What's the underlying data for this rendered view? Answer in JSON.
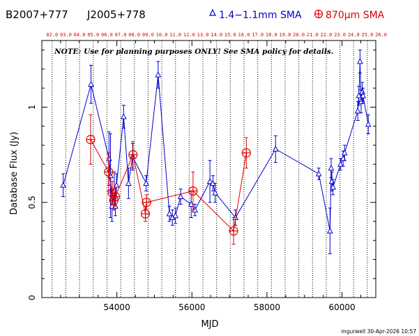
{
  "header": {
    "source_name": "B2007+777",
    "alias_name": "J2005+778",
    "legend_blue_label": "1.4−1.1mm SMA",
    "legend_red_label": "870µm SMA",
    "blue_color": "#0000cc",
    "red_color": "#dd0000"
  },
  "note": "NOTE: Use for planning purposes ONLY! See SMA policy for details.",
  "footer": {
    "credit": "mgurwell 30-Apr-2026 10:57"
  },
  "chart_data": {
    "type": "scatter",
    "xlabel": "MJD",
    "ylabel": "Database Flux (Jy)",
    "xlim": [
      52000,
      60900
    ],
    "ylim": [
      0,
      1.35
    ],
    "xticks": [
      54000,
      56000,
      58000,
      60000
    ],
    "yticks": [
      0,
      0.5,
      1
    ],
    "ytick_labels": [
      "0",
      "0.5",
      "1"
    ],
    "top_axis": {
      "labels": [
        "02.0",
        "03.0",
        "04.0",
        "05.0",
        "06.0",
        "07.0",
        "08.0",
        "09.0",
        "10.0",
        "11.0",
        "12.0",
        "13.0",
        "14.0",
        "15.0",
        "16.0",
        "17.0",
        "18.0",
        "19.0",
        "20.0",
        "21.0",
        "22.0",
        "23.0",
        "24.0",
        "25.0",
        "26.0"
      ],
      "mjd": [
        52275,
        52640,
        53005,
        53371,
        53736,
        54101,
        54466,
        54832,
        55197,
        55562,
        55927,
        56293,
        56658,
        57023,
        57388,
        57754,
        58119,
        58484,
        58849,
        59215,
        59580,
        59945,
        60310,
        60676,
        61041
      ]
    },
    "grid": "vertical dotted lines at year boundaries",
    "legend_position": "top-right",
    "series": [
      {
        "name": "1.4−1.1mm SMA",
        "color": "#0000cc",
        "marker": "triangle",
        "points": [
          {
            "x": 52570,
            "y": 0.59,
            "err": 0.06
          },
          {
            "x": 53310,
            "y": 1.12,
            "err": 0.1
          },
          {
            "x": 53790,
            "y": 0.73,
            "err": 0.14
          },
          {
            "x": 53830,
            "y": 0.64,
            "err": 0.22
          },
          {
            "x": 53870,
            "y": 0.48,
            "err": 0.08
          },
          {
            "x": 53930,
            "y": 0.56,
            "err": 0.1
          },
          {
            "x": 53960,
            "y": 0.48,
            "err": 0.05
          },
          {
            "x": 53990,
            "y": 0.59,
            "err": 0.06
          },
          {
            "x": 54180,
            "y": 0.95,
            "err": 0.06
          },
          {
            "x": 54310,
            "y": 0.6,
            "err": 0.08
          },
          {
            "x": 54420,
            "y": 0.74,
            "err": 0.07
          },
          {
            "x": 54780,
            "y": 0.6,
            "err": 0.04
          },
          {
            "x": 55100,
            "y": 1.17,
            "err": 0.07
          },
          {
            "x": 55400,
            "y": 0.44,
            "err": 0.04
          },
          {
            "x": 55480,
            "y": 0.42,
            "err": 0.04
          },
          {
            "x": 55560,
            "y": 0.43,
            "err": 0.04
          },
          {
            "x": 55700,
            "y": 0.53,
            "err": 0.04
          },
          {
            "x": 55980,
            "y": 0.49,
            "err": 0.07
          },
          {
            "x": 56080,
            "y": 0.46,
            "err": 0.03
          },
          {
            "x": 56480,
            "y": 0.61,
            "err": 0.11
          },
          {
            "x": 56560,
            "y": 0.6,
            "err": 0.04
          },
          {
            "x": 56620,
            "y": 0.55,
            "err": 0.05
          },
          {
            "x": 57160,
            "y": 0.42,
            "err": 0.04
          },
          {
            "x": 58230,
            "y": 0.78,
            "err": 0.07
          },
          {
            "x": 59380,
            "y": 0.65,
            "err": 0.03
          },
          {
            "x": 59680,
            "y": 0.35,
            "err": 0.12
          },
          {
            "x": 59710,
            "y": 0.68,
            "err": 0.05
          },
          {
            "x": 59730,
            "y": 0.61,
            "err": 0.05
          },
          {
            "x": 59760,
            "y": 0.58,
            "err": 0.04
          },
          {
            "x": 59960,
            "y": 0.7,
            "err": 0.03
          },
          {
            "x": 60030,
            "y": 0.73,
            "err": 0.04
          },
          {
            "x": 60070,
            "y": 0.76,
            "err": 0.04
          },
          {
            "x": 60420,
            "y": 0.98,
            "err": 0.05
          },
          {
            "x": 60450,
            "y": 1.06,
            "err": 0.05
          },
          {
            "x": 60480,
            "y": 1.24,
            "err": 0.06
          },
          {
            "x": 60510,
            "y": 1.03,
            "err": 0.06
          },
          {
            "x": 60540,
            "y": 1.08,
            "err": 0.05
          },
          {
            "x": 60560,
            "y": 1.06,
            "err": 0.04
          },
          {
            "x": 60700,
            "y": 0.91,
            "err": 0.05
          }
        ]
      },
      {
        "name": "870µm SMA",
        "color": "#dd0000",
        "marker": "circle-plus",
        "points": [
          {
            "x": 53300,
            "y": 0.83,
            "err": 0.13
          },
          {
            "x": 53780,
            "y": 0.66,
            "err": 0.1
          },
          {
            "x": 53880,
            "y": 0.55,
            "err": 0.06
          },
          {
            "x": 53920,
            "y": 0.51,
            "err": 0.05
          },
          {
            "x": 53960,
            "y": 0.53,
            "err": 0.05
          },
          {
            "x": 54430,
            "y": 0.75,
            "err": 0.07
          },
          {
            "x": 54760,
            "y": 0.44,
            "err": 0.04
          },
          {
            "x": 54790,
            "y": 0.5,
            "err": 0.04
          },
          {
            "x": 56030,
            "y": 0.56,
            "err": 0.1
          },
          {
            "x": 57110,
            "y": 0.35,
            "err": 0.07
          },
          {
            "x": 57450,
            "y": 0.76,
            "err": 0.08
          }
        ]
      }
    ]
  }
}
